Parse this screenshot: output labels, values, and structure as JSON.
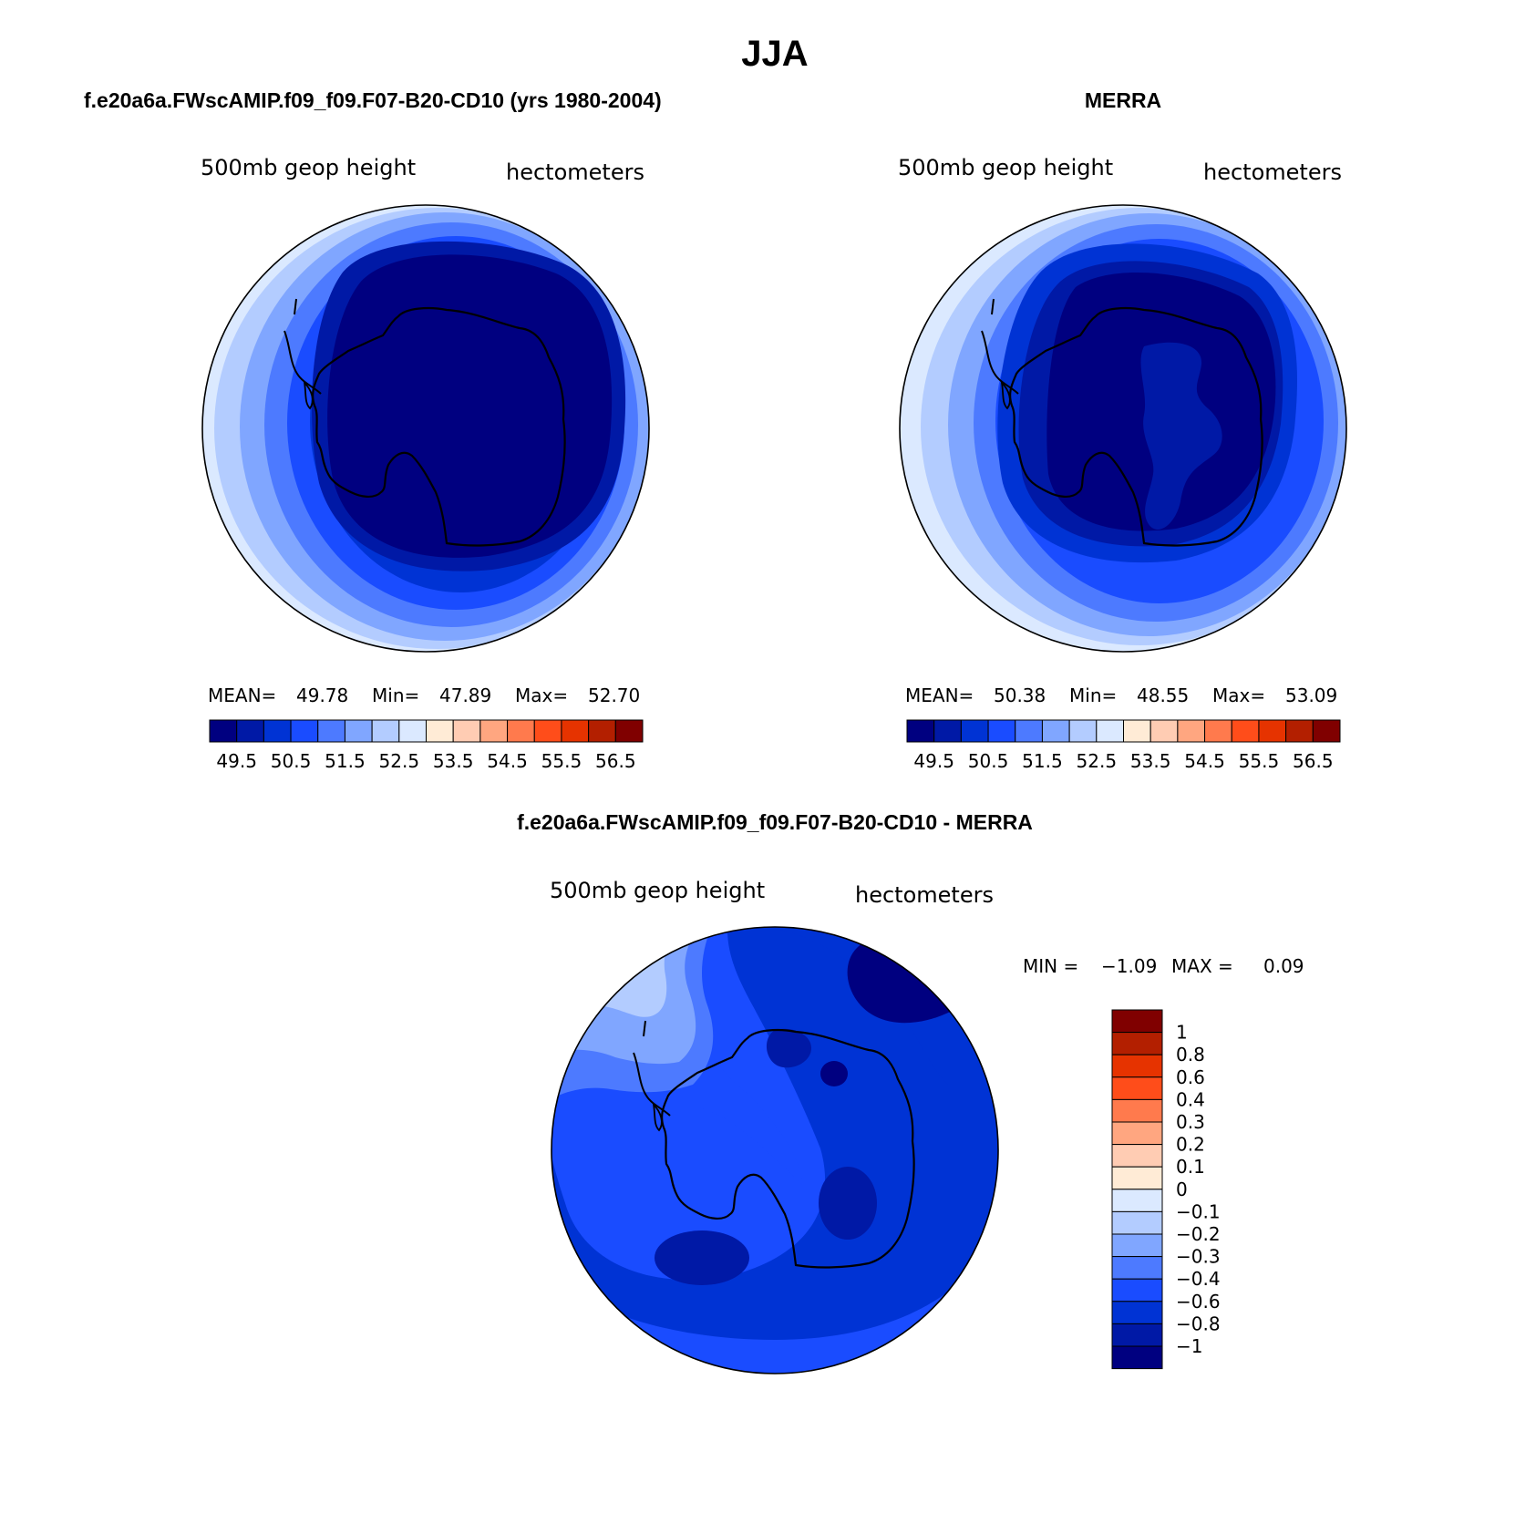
{
  "title": "JJA",
  "colors": {
    "abs": [
      "#000080",
      "#0019a6",
      "#0033d4",
      "#1a4cff",
      "#4d7aff",
      "#80a6ff",
      "#b3ccff",
      "#dbe9ff",
      "#ffebd6",
      "#ffccb3",
      "#ffa680",
      "#ff7a4d",
      "#ff4d1a",
      "#e63300",
      "#b31f00",
      "#800000"
    ],
    "diff": [
      "#000080",
      "#0019a6",
      "#0033d4",
      "#1a4cff",
      "#4d7aff",
      "#80a6ff",
      "#b3ccff",
      "#dbe9ff",
      "#ffebd6",
      "#ffccb3",
      "#ffa680",
      "#ff7a4d",
      "#ff4d1a",
      "#e63300",
      "#b31f00",
      "#800000"
    ],
    "coast": "#000000"
  },
  "panels": [
    {
      "title": "f.e20a6a.FWscAMIP.f09_f09.F07-B20-CD10 (yrs 1980-2004)",
      "variable": "500mb geop height",
      "units": "hectometers",
      "stats": {
        "mean_label": "MEAN=",
        "mean": "49.78",
        "min_label": "Min=",
        "min": "47.89",
        "max_label": "Max=",
        "max": "52.70"
      },
      "colorbar_labels": [
        "49.5",
        "50.5",
        "51.5",
        "52.5",
        "53.5",
        "54.5",
        "55.5",
        "56.5"
      ]
    },
    {
      "title": "MERRA",
      "variable": "500mb geop height",
      "units": "hectometers",
      "stats": {
        "mean_label": "MEAN=",
        "mean": "50.38",
        "min_label": "Min=",
        "min": "48.55",
        "max_label": "Max=",
        "max": "53.09"
      },
      "colorbar_labels": [
        "49.5",
        "50.5",
        "51.5",
        "52.5",
        "53.5",
        "54.5",
        "55.5",
        "56.5"
      ]
    },
    {
      "title": "f.e20a6a.FWscAMIP.f09_f09.F07-B20-CD10 - MERRA",
      "variable": "500mb geop height",
      "units": "hectometers",
      "stats": {
        "min_label": "MIN =",
        "min": "−1.09",
        "max_label": "MAX =",
        "max": "0.09"
      },
      "colorbar_labels": [
        "1",
        "0.8",
        "0.6",
        "0.4",
        "0.3",
        "0.2",
        "0.1",
        "0",
        "−0.1",
        "−0.2",
        "−0.3",
        "−0.4",
        "−0.6",
        "−0.8",
        "−1"
      ]
    }
  ]
}
